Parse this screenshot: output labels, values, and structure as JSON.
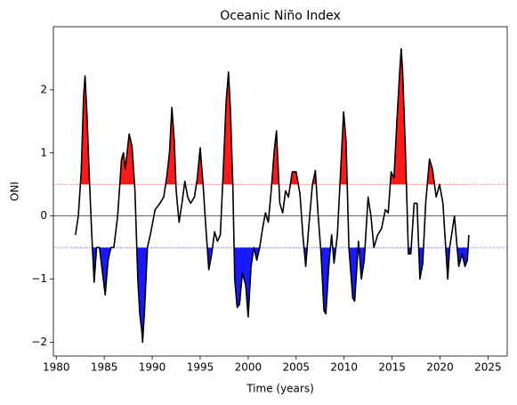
{
  "chart_data": {
    "type": "line",
    "title": "Oceanic Niño Index",
    "x_label": "Time (years)",
    "y_label": "ONI",
    "x": [
      1982.0,
      1982.3,
      1982.6,
      1982.85,
      1983.0,
      1983.2,
      1983.45,
      1983.7,
      1983.95,
      1984.2,
      1984.5,
      1984.9,
      1985.1,
      1985.4,
      1985.7,
      1986.0,
      1986.4,
      1986.8,
      1987.0,
      1987.2,
      1987.6,
      1987.9,
      1988.2,
      1988.5,
      1988.7,
      1988.9,
      1989.0,
      1989.2,
      1989.5,
      1989.8,
      1990.3,
      1990.8,
      1991.2,
      1991.5,
      1991.8,
      1992.05,
      1992.3,
      1992.5,
      1992.8,
      1993.1,
      1993.4,
      1993.7,
      1994.0,
      1994.4,
      1994.7,
      1995.0,
      1995.3,
      1995.6,
      1995.9,
      1996.2,
      1996.5,
      1996.8,
      1997.1,
      1997.4,
      1997.7,
      1997.95,
      1998.15,
      1998.4,
      1998.6,
      1998.85,
      1999.1,
      1999.4,
      1999.75,
      2000.0,
      2000.3,
      2000.6,
      2000.9,
      2001.2,
      2001.5,
      2001.8,
      2002.1,
      2002.4,
      2002.7,
      2002.95,
      2003.3,
      2003.6,
      2003.9,
      2004.2,
      2004.6,
      2005.0,
      2005.4,
      2005.7,
      2006.0,
      2006.3,
      2006.7,
      2007.0,
      2007.3,
      2007.6,
      2007.9,
      2008.1,
      2008.4,
      2008.7,
      2008.95,
      2009.3,
      2009.6,
      2009.95,
      2010.2,
      2010.5,
      2010.9,
      2011.1,
      2011.5,
      2011.8,
      2012.1,
      2012.5,
      2012.8,
      2013.1,
      2013.5,
      2013.9,
      2014.3,
      2014.6,
      2014.9,
      2015.2,
      2015.5,
      2015.8,
      2015.95,
      2016.1,
      2016.4,
      2016.7,
      2016.95,
      2017.3,
      2017.6,
      2017.9,
      2018.2,
      2018.5,
      2018.9,
      2019.2,
      2019.6,
      2019.95,
      2020.3,
      2020.8,
      2021.0,
      2021.5,
      2021.95,
      2022.3,
      2022.6,
      2022.85,
      2023.0
    ],
    "values": [
      -0.3,
      0.0,
      0.7,
      1.9,
      2.22,
      1.6,
      0.6,
      -0.3,
      -1.05,
      -0.5,
      -0.5,
      -1.0,
      -1.25,
      -0.7,
      -0.5,
      -0.5,
      0.0,
      0.9,
      1.0,
      0.75,
      1.3,
      1.1,
      0.4,
      -1.0,
      -1.55,
      -1.8,
      -2.0,
      -1.5,
      -0.5,
      -0.3,
      0.1,
      0.2,
      0.3,
      0.6,
      1.0,
      1.72,
      1.2,
      0.4,
      -0.1,
      0.2,
      0.55,
      0.3,
      0.2,
      0.3,
      0.6,
      1.08,
      0.5,
      -0.2,
      -0.85,
      -0.6,
      -0.25,
      -0.4,
      -0.3,
      0.7,
      1.8,
      2.28,
      1.7,
      0.5,
      -1.0,
      -1.45,
      -1.4,
      -0.9,
      -1.1,
      -1.6,
      -0.8,
      -0.5,
      -0.7,
      -0.5,
      -0.2,
      0.05,
      -0.1,
      0.4,
      1.0,
      1.35,
      0.2,
      0.05,
      0.4,
      0.3,
      0.7,
      0.7,
      0.35,
      -0.3,
      -0.8,
      -0.2,
      0.5,
      0.72,
      0.0,
      -0.6,
      -1.5,
      -1.55,
      -0.8,
      -0.3,
      -0.75,
      -0.3,
      0.6,
      1.65,
      1.2,
      -0.5,
      -1.3,
      -1.35,
      -0.4,
      -1.0,
      -0.7,
      0.3,
      0.0,
      -0.5,
      -0.3,
      -0.2,
      0.1,
      0.05,
      0.7,
      0.6,
      1.5,
      2.3,
      2.65,
      2.3,
      1.0,
      -0.6,
      -0.6,
      0.2,
      0.2,
      -1.0,
      -0.75,
      0.2,
      0.9,
      0.75,
      0.3,
      0.5,
      0.2,
      -1.0,
      -0.5,
      0.0,
      -0.8,
      -0.6,
      -0.8,
      -0.7,
      -0.3
    ],
    "color": "#000000",
    "above_color": "#ff0000",
    "below_color": "#0000ff",
    "upper_threshold": 0.5,
    "lower_threshold": -0.5,
    "baseline": 0,
    "xlim": [
      1979.7,
      2027.0
    ],
    "ylim": [
      -2.22,
      3.0
    ],
    "xticks": [
      1980,
      1985,
      1990,
      1995,
      2000,
      2005,
      2010,
      2015,
      2020,
      2025
    ],
    "yticks": [
      {
        "value": -2,
        "label": "−2"
      },
      {
        "value": -1,
        "label": "−1"
      },
      0,
      1,
      2
    ]
  }
}
